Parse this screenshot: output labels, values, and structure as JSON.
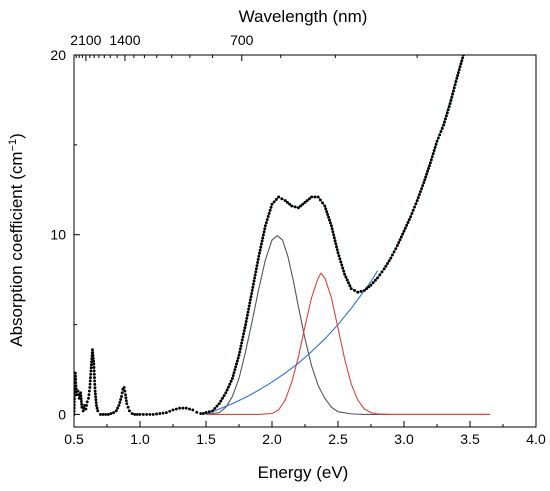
{
  "chart_data": {
    "type": "line",
    "xlabel": "Energy (eV)",
    "ylabel": "Absorption coefficient (cm",
    "ylabel_sup": "−1",
    "ylabel_close": ")",
    "top_axis_label": "Wavelength (nm)",
    "xlim": [
      0.5,
      4.0
    ],
    "ylim": [
      -0.7,
      20
    ],
    "x_ticks": [
      "0.5",
      "1.0",
      "1.5",
      "2.0",
      "2.5",
      "3.0",
      "3.5",
      "4.0"
    ],
    "y_ticks": [
      "0",
      "10",
      "20"
    ],
    "top_ticks": [
      {
        "label": "2100",
        "energy_ev": 0.59
      },
      {
        "label": "1400",
        "energy_ev": 0.886
      },
      {
        "label": "700",
        "energy_ev": 1.771
      }
    ],
    "grid": false,
    "series": [
      {
        "role": "measured",
        "style": "dotted",
        "color": "#000000",
        "points": [
          [
            0.5,
            0.0
          ],
          [
            0.505,
            1.4
          ],
          [
            0.51,
            2.3
          ],
          [
            0.515,
            1.6
          ],
          [
            0.52,
            1.1
          ],
          [
            0.53,
            1.3
          ],
          [
            0.54,
            0.9
          ],
          [
            0.55,
            1.2
          ],
          [
            0.56,
            0.4
          ],
          [
            0.57,
            0.2
          ],
          [
            0.58,
            0.5
          ],
          [
            0.59,
            0.3
          ],
          [
            0.6,
            0.7
          ],
          [
            0.61,
            0.9
          ],
          [
            0.62,
            1.5
          ],
          [
            0.63,
            2.6
          ],
          [
            0.64,
            3.6
          ],
          [
            0.65,
            2.8
          ],
          [
            0.66,
            1.3
          ],
          [
            0.67,
            0.5
          ],
          [
            0.68,
            0.2
          ],
          [
            0.7,
            0.0
          ],
          [
            0.72,
            0.0
          ],
          [
            0.74,
            0.0
          ],
          [
            0.76,
            0.0
          ],
          [
            0.78,
            0.05
          ],
          [
            0.8,
            0.1
          ],
          [
            0.82,
            0.2
          ],
          [
            0.84,
            0.5
          ],
          [
            0.86,
            1.0
          ],
          [
            0.87,
            1.4
          ],
          [
            0.88,
            1.5
          ],
          [
            0.89,
            1.1
          ],
          [
            0.9,
            0.6
          ],
          [
            0.92,
            0.2
          ],
          [
            0.94,
            0.05
          ],
          [
            0.96,
            0.0
          ],
          [
            1.0,
            0.0
          ],
          [
            1.05,
            0.0
          ],
          [
            1.1,
            0.0
          ],
          [
            1.15,
            0.05
          ],
          [
            1.2,
            0.1
          ],
          [
            1.25,
            0.25
          ],
          [
            1.3,
            0.35
          ],
          [
            1.35,
            0.35
          ],
          [
            1.4,
            0.25
          ],
          [
            1.43,
            0.12
          ],
          [
            1.46,
            0.05
          ],
          [
            1.48,
            0.05
          ],
          [
            1.5,
            0.1
          ],
          [
            1.55,
            0.2
          ],
          [
            1.6,
            0.6
          ],
          [
            1.65,
            1.2
          ],
          [
            1.7,
            2.0
          ],
          [
            1.75,
            3.3
          ],
          [
            1.8,
            5.0
          ],
          [
            1.85,
            6.9
          ],
          [
            1.9,
            8.8
          ],
          [
            1.95,
            10.5
          ],
          [
            2.0,
            11.7
          ],
          [
            2.05,
            12.1
          ],
          [
            2.1,
            11.9
          ],
          [
            2.15,
            11.6
          ],
          [
            2.2,
            11.5
          ],
          [
            2.25,
            11.8
          ],
          [
            2.3,
            12.1
          ],
          [
            2.35,
            12.1
          ],
          [
            2.4,
            11.6
          ],
          [
            2.45,
            10.5
          ],
          [
            2.5,
            9.0
          ],
          [
            2.55,
            7.8
          ],
          [
            2.6,
            7.0
          ],
          [
            2.65,
            6.8
          ],
          [
            2.7,
            6.9
          ],
          [
            2.75,
            7.2
          ],
          [
            2.8,
            7.6
          ],
          [
            2.85,
            8.1
          ],
          [
            2.9,
            8.7
          ],
          [
            2.95,
            9.4
          ],
          [
            3.0,
            10.2
          ],
          [
            3.05,
            11.0
          ],
          [
            3.1,
            11.9
          ],
          [
            3.15,
            12.9
          ],
          [
            3.2,
            14.0
          ],
          [
            3.25,
            15.2
          ],
          [
            3.3,
            16.1
          ],
          [
            3.35,
            17.3
          ],
          [
            3.4,
            18.7
          ],
          [
            3.45,
            20.0
          ]
        ]
      },
      {
        "role": "fit-total",
        "style": "solid",
        "color": "#1f9d6a",
        "points": [
          [
            1.5,
            0.1
          ],
          [
            1.55,
            0.2
          ],
          [
            1.6,
            0.6
          ],
          [
            1.65,
            1.2
          ],
          [
            1.7,
            2.0
          ],
          [
            1.75,
            3.3
          ],
          [
            1.8,
            5.0
          ],
          [
            1.85,
            6.9
          ],
          [
            1.9,
            8.8
          ],
          [
            1.95,
            10.5
          ],
          [
            2.0,
            11.7
          ],
          [
            2.05,
            12.1
          ],
          [
            2.1,
            11.9
          ],
          [
            2.15,
            11.6
          ],
          [
            2.2,
            11.5
          ],
          [
            2.25,
            11.8
          ],
          [
            2.3,
            12.1
          ],
          [
            2.35,
            12.1
          ],
          [
            2.4,
            11.6
          ],
          [
            2.45,
            10.5
          ],
          [
            2.5,
            9.0
          ],
          [
            2.55,
            7.8
          ],
          [
            2.6,
            7.0
          ],
          [
            2.65,
            6.8
          ],
          [
            2.7,
            6.9
          ],
          [
            2.75,
            7.2
          ],
          [
            2.8,
            7.6
          ],
          [
            2.85,
            8.1
          ],
          [
            2.9,
            8.7
          ],
          [
            2.95,
            9.4
          ],
          [
            3.0,
            10.2
          ],
          [
            3.05,
            11.0
          ],
          [
            3.1,
            11.9
          ],
          [
            3.15,
            12.9
          ],
          [
            3.2,
            14.0
          ],
          [
            3.25,
            15.2
          ],
          [
            3.3,
            16.2
          ],
          [
            3.35,
            17.5
          ],
          [
            3.4,
            18.8
          ],
          [
            3.45,
            20.0
          ]
        ]
      },
      {
        "role": "gaussian-peak-1",
        "style": "solid",
        "color": "#555555",
        "points": [
          [
            1.5,
            0.0
          ],
          [
            1.6,
            0.1
          ],
          [
            1.65,
            0.4
          ],
          [
            1.7,
            1.0
          ],
          [
            1.75,
            2.0
          ],
          [
            1.8,
            3.5
          ],
          [
            1.85,
            5.2
          ],
          [
            1.9,
            7.0
          ],
          [
            1.95,
            8.6
          ],
          [
            2.0,
            9.7
          ],
          [
            2.04,
            9.95
          ],
          [
            2.08,
            9.7
          ],
          [
            2.12,
            8.8
          ],
          [
            2.16,
            7.5
          ],
          [
            2.2,
            6.0
          ],
          [
            2.25,
            4.2
          ],
          [
            2.3,
            2.7
          ],
          [
            2.35,
            1.6
          ],
          [
            2.4,
            0.9
          ],
          [
            2.45,
            0.4
          ],
          [
            2.5,
            0.15
          ],
          [
            2.6,
            0.03
          ],
          [
            2.7,
            0.0
          ],
          [
            3.0,
            0.0
          ],
          [
            3.65,
            0.0
          ]
        ]
      },
      {
        "role": "gaussian-peak-2",
        "style": "solid",
        "color": "#e0413a",
        "points": [
          [
            1.5,
            0.0
          ],
          [
            1.9,
            0.0
          ],
          [
            2.0,
            0.05
          ],
          [
            2.05,
            0.25
          ],
          [
            2.1,
            0.8
          ],
          [
            2.15,
            1.8
          ],
          [
            2.2,
            3.2
          ],
          [
            2.25,
            4.9
          ],
          [
            2.3,
            6.5
          ],
          [
            2.35,
            7.6
          ],
          [
            2.37,
            7.85
          ],
          [
            2.4,
            7.6
          ],
          [
            2.45,
            6.5
          ],
          [
            2.5,
            4.8
          ],
          [
            2.55,
            3.1
          ],
          [
            2.6,
            1.7
          ],
          [
            2.65,
            0.8
          ],
          [
            2.7,
            0.3
          ],
          [
            2.75,
            0.1
          ],
          [
            2.8,
            0.03
          ],
          [
            2.9,
            0.0
          ],
          [
            3.2,
            0.0
          ],
          [
            3.65,
            0.0
          ]
        ]
      },
      {
        "role": "background",
        "style": "solid",
        "color": "#2f6fd1",
        "points": [
          [
            1.5,
            0.0
          ],
          [
            1.6,
            0.3
          ],
          [
            1.7,
            0.6
          ],
          [
            1.8,
            0.95
          ],
          [
            1.9,
            1.35
          ],
          [
            2.0,
            1.8
          ],
          [
            2.1,
            2.3
          ],
          [
            2.2,
            2.85
          ],
          [
            2.3,
            3.5
          ],
          [
            2.4,
            4.2
          ],
          [
            2.5,
            5.0
          ],
          [
            2.6,
            5.9
          ],
          [
            2.7,
            6.9
          ],
          [
            2.75,
            7.4
          ],
          [
            2.8,
            8.0
          ]
        ]
      }
    ]
  }
}
